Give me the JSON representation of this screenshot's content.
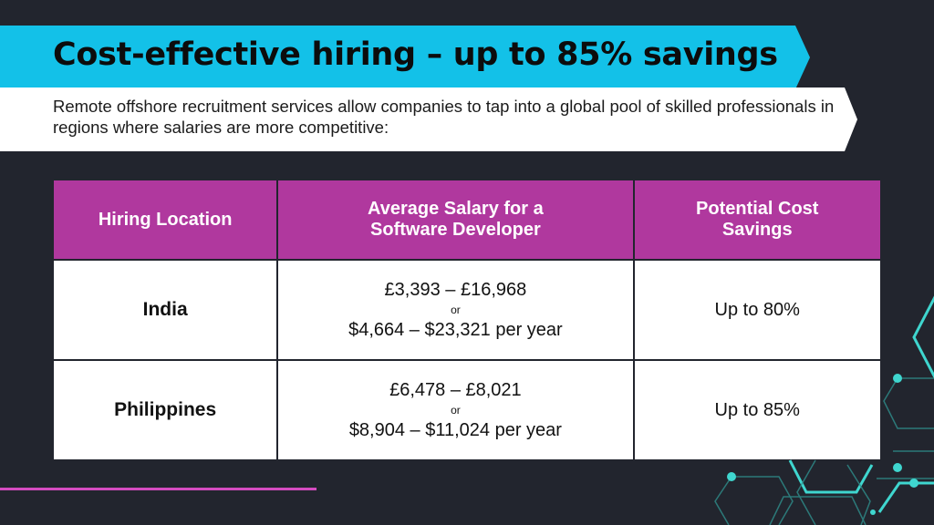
{
  "title": "Cost-effective hiring – up to 85% savings",
  "subtitle": "Remote offshore recruitment services allow companies to tap into a global pool of skilled professionals in regions where salaries are more competitive:",
  "table": {
    "headers": [
      "Hiring Location",
      "Average Salary for a Software Developer",
      "Potential Cost Savings"
    ],
    "rows": [
      {
        "location": "India",
        "salary_gbp": "£3,393 – £16,968",
        "or": "or",
        "salary_usd": "$4,664 – $23,321 per year",
        "savings": "Up to 80%"
      },
      {
        "location": "Philippines",
        "salary_gbp": "£6,478 – £8,021",
        "or": "or",
        "salary_usd": "$8,904 – $11,024 per year",
        "savings": "Up to 85%"
      }
    ]
  },
  "colors": {
    "background": "#22252e",
    "title_banner": "#13c1e8",
    "header": "#b0389e",
    "accent_line": "#d44bc0",
    "circuit": "#3fd6cf"
  }
}
